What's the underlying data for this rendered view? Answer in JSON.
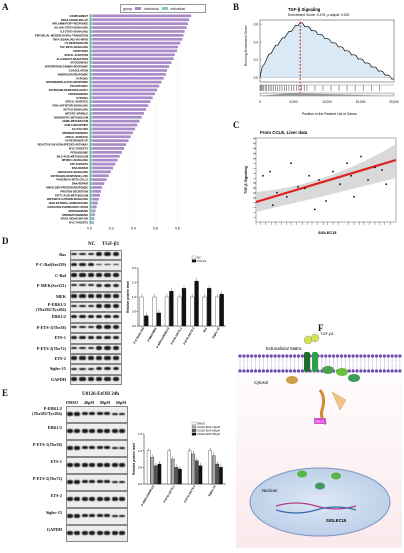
{
  "panels": {
    "A": "A",
    "B": "B",
    "C": "C",
    "D": "D",
    "E": "E",
    "F": "F"
  },
  "panel_a": {
    "legend": [
      "group",
      "individual",
      "individual"
    ],
    "pathways": [
      {
        "name": "COMPLEMENT",
        "nes": 0.92
      },
      {
        "name": "KRAS-SIGNALING-UP",
        "nes": 0.9
      },
      {
        "name": "INFLAMMATORY-RESPONSE",
        "nes": 0.89
      },
      {
        "name": "IL6-JAK-STAT3-SIGNALING",
        "nes": 0.88
      },
      {
        "name": "IL2-STAT5-SIGNALING",
        "nes": 0.86
      },
      {
        "name": "EPITHELIAL-MESENCHYMAL-TRANSITION",
        "nes": 0.85
      },
      {
        "name": "TNFA-SIGNALING-VIA-NFKB",
        "nes": 0.84
      },
      {
        "name": "UV-RESPONSE-DN",
        "nes": 0.82
      },
      {
        "name": "TGF-BETA-SIGNALING",
        "nes": 0.8
      },
      {
        "name": "APOPTOSIS",
        "nes": 0.79
      },
      {
        "name": "APICAL-JUNCTION",
        "nes": 0.77
      },
      {
        "name": "ALLOGRAFT-REJECTION",
        "nes": 0.76
      },
      {
        "name": "MYOGENESIS",
        "nes": 0.74
      },
      {
        "name": "INTERFERON-GAMMA-RESPONSE",
        "nes": 0.72
      },
      {
        "name": "COAGULATION",
        "nes": 0.7
      },
      {
        "name": "ANDROGEN-RESPONSE",
        "nes": 0.69
      },
      {
        "name": "HYPOXIA",
        "nes": 0.67
      },
      {
        "name": "INTERFERON-ALPHA-RESPONSE",
        "nes": 0.65
      },
      {
        "name": "P53-PATHWAY",
        "nes": 0.63
      },
      {
        "name": "ESTROGEN-RESPONSE-EARLY",
        "nes": 0.61
      },
      {
        "name": "ANGIOGENESIS",
        "nes": 0.59
      },
      {
        "name": "HYPOXIA",
        "nes": 0.57
      },
      {
        "name": "APICAL-SURFACE",
        "nes": 0.55
      },
      {
        "name": "PI3K-AKT-MTOR-SIGNALING",
        "nes": 0.53
      },
      {
        "name": "NOTCH-SIGNALING",
        "nes": 0.51
      },
      {
        "name": "MITOTIC-SPINDLE",
        "nes": 0.49
      },
      {
        "name": "XENOBIOTIC-METABOLISM",
        "nes": 0.47
      },
      {
        "name": "HEME-METABOLISM",
        "nes": 0.45
      },
      {
        "name": "G2M-CHECKPOINT",
        "nes": 0.43
      },
      {
        "name": "GLYCOLYSIS",
        "nes": 0.41
      },
      {
        "name": "SPERMATOGENESIS",
        "nes": 0.39
      },
      {
        "name": "APICAL-SURFACE",
        "nes": 0.37
      },
      {
        "name": "UV-RESPONSE-UP",
        "nes": 0.35
      },
      {
        "name": "REACTIVE-OXYGEN-SPECIES-PATHWAY",
        "nes": 0.33
      },
      {
        "name": "MYC-TARGETS",
        "nes": 0.31
      },
      {
        "name": "PEROXISOME",
        "nes": 0.29
      },
      {
        "name": "BILE-ACID-METABOLISM",
        "nes": 0.27
      },
      {
        "name": "MTORC1-SIGNALING",
        "nes": 0.25
      },
      {
        "name": "E2F-TARGETS",
        "nes": 0.23
      },
      {
        "name": "DNA-REPAIR",
        "nes": 0.21
      },
      {
        "name": "HEDGEHOG-SIGNALING",
        "nes": 0.19
      },
      {
        "name": "ESTROGEN-RESPONSE-LATE",
        "nes": 0.17
      },
      {
        "name": "PANCREAS-BETA-CELLS",
        "nes": 0.15
      },
      {
        "name": "DNA-REPAIR",
        "nes": 0.13
      },
      {
        "name": "UNFOLDED-PROTEIN-RESPONSE",
        "nes": 0.11
      },
      {
        "name": "PROTEIN-SECRETION",
        "nes": 0.1
      },
      {
        "name": "FATTY-ACID-METABOLISM",
        "nes": 0.09
      },
      {
        "name": "WNT-BETA-CATENIN-SIGNALING",
        "nes": 0.08
      },
      {
        "name": "CHOLESTEROL-HOMEOSTASIS",
        "nes": 0.07
      },
      {
        "name": "OXIDATIVE-PHOSPHORYLATION",
        "nes": 0.06
      },
      {
        "name": "ADIPOGENESIS",
        "nes": 0.05
      },
      {
        "name": "SPERMATOGENESIS",
        "nes": 0.045
      },
      {
        "name": "KRAS-SIGNALING-DN",
        "nes": 0.04
      },
      {
        "name": "MYC-TARGETS",
        "nes": 0.035
      }
    ],
    "x_ticks": [
      "0.0",
      "0.2",
      "0.4",
      "0.6",
      "0.8"
    ],
    "bar_color": "#a98bc9",
    "baseline_color": "#7fcfb8"
  },
  "panel_b": {
    "title": "TGF-β Signaling",
    "subtitle": "Enrichment Score: 0.475, p.adjust: 0.002",
    "ylabel": "Running Enrichment Score",
    "xlabel": "Position in the Ranked List of Genes",
    "y_ticks": [
      "0.6",
      "0.4",
      "0.2",
      "0.0"
    ],
    "x_ticks": [
      "0",
      "5,000",
      "10,000",
      "15,000",
      "20,000"
    ],
    "peak_label": "5,000"
  },
  "panel_c": {
    "title": "From CCLE, Liver data",
    "ylabel": "TGF-β Signaling",
    "xlabel": "SIGLEC15",
    "stat": "r = 0.499",
    "pval": "p = 0.0022"
  },
  "panel_d": {
    "conditions": [
      "NC",
      "TGF-β1"
    ],
    "blots": [
      "Ras",
      "P-C-Raf(Ser259)",
      "C-Raf",
      "P-MEK(Ser221)",
      "MEK",
      "P-ERK1/2\n(Thr202/Tyr204)",
      "ERK1/2",
      "P-ETS-1(Thr38)",
      "ETS-1",
      "P-ETS-2(Thr72)",
      "ETS-2",
      "Siglec-15",
      "GAPDH"
    ],
    "legend": [
      "NC",
      "TGF-β1"
    ],
    "ylabel": "Relative protein level",
    "x_labels": [
      "P-C-Raf/C-Raf",
      "P-MEK/MEK",
      "P-ERK1/2/ERK1/2",
      "P-ETS-1/ETS-1",
      "P-ETS-2/ETS-2",
      "Ras",
      "Siglec-15"
    ]
  },
  "panel_e": {
    "title": "U0126-EtOH 24h",
    "conditions": [
      "DMSO",
      "40μM",
      "80μM",
      "60μM"
    ],
    "blots": [
      "P-ERK1/2\n(Thr202/Tyr204)",
      "ERK1/2",
      "P-ETS-1(Thr38)",
      "ETS-1",
      "P-ETS-2(Thr72)",
      "ETS-2",
      "Siglec-15",
      "GAPDH"
    ],
    "legend": [
      "DMSO",
      "U0126-EtOH 40μM",
      "U0126-EtOH 80μM",
      "U0126-EtOH 60μM"
    ],
    "ylabel": "Relative protein level",
    "x_labels": [
      "P-ERK1/2/ERK1/2",
      "P-ETS-1/ETS-1",
      "P-ETS-2/ETS-2",
      "Siglec-15"
    ]
  },
  "panel_f": {
    "labels": {
      "tgf": "TGF-β1",
      "extracellular": "Extracellular Matrix",
      "cytosol": "Cytosol",
      "nucleus": "Nucleus",
      "gene": "SIGLEC15",
      "erk": "ERK1/2"
    }
  },
  "chart_data": [
    {
      "type": "bar",
      "title": "",
      "legend": [
        "NC",
        "TGF-β1"
      ],
      "categories": [
        "P-C-Raf/C-Raf",
        "P-MEK/MEK",
        "P-ERK1/2/ERK1/2",
        "P-ETS-1/ETS-1",
        "P-ETS-2/ETS-2",
        "Ras",
        "Siglec-15"
      ],
      "series": [
        {
          "name": "NC",
          "values": [
            1.0,
            1.0,
            1.0,
            1.0,
            1.0,
            1.0,
            1.0
          ]
        },
        {
          "name": "TGF-β1",
          "values": [
            0.35,
            0.45,
            1.2,
            1.3,
            1.55,
            1.3,
            1.1
          ]
        }
      ],
      "ylabel": "Relative protein level",
      "ylim": [
        0,
        2.0
      ],
      "y_ticks": [
        "0.0",
        "0.5",
        "1.0",
        "1.5",
        "2.0"
      ]
    },
    {
      "type": "bar",
      "title": "",
      "legend": [
        "DMSO",
        "U0126-EtOH 40μM",
        "U0126-EtOH 80μM",
        "U0126-EtOH 60μM"
      ],
      "categories": [
        "P-ERK1/2/ERK1/2",
        "P-ETS-1/ETS-1",
        "P-ETS-2/ETS-2",
        "Siglec-15"
      ],
      "series": [
        {
          "name": "DMSO",
          "values": [
            1.0,
            1.0,
            1.0,
            1.0
          ]
        },
        {
          "name": "U0126-EtOH 40μM",
          "values": [
            0.8,
            0.75,
            0.9,
            0.85
          ]
        },
        {
          "name": "U0126-EtOH 80μM",
          "values": [
            0.55,
            0.5,
            0.7,
            0.6
          ]
        },
        {
          "name": "U0126-EtOH 60μM",
          "values": [
            0.6,
            0.45,
            0.55,
            0.5
          ]
        }
      ],
      "ylabel": "Relative protein level",
      "ylim": [
        0,
        1.5
      ],
      "y_ticks": [
        "0.0",
        "0.5",
        "1.0",
        "1.5"
      ]
    }
  ]
}
